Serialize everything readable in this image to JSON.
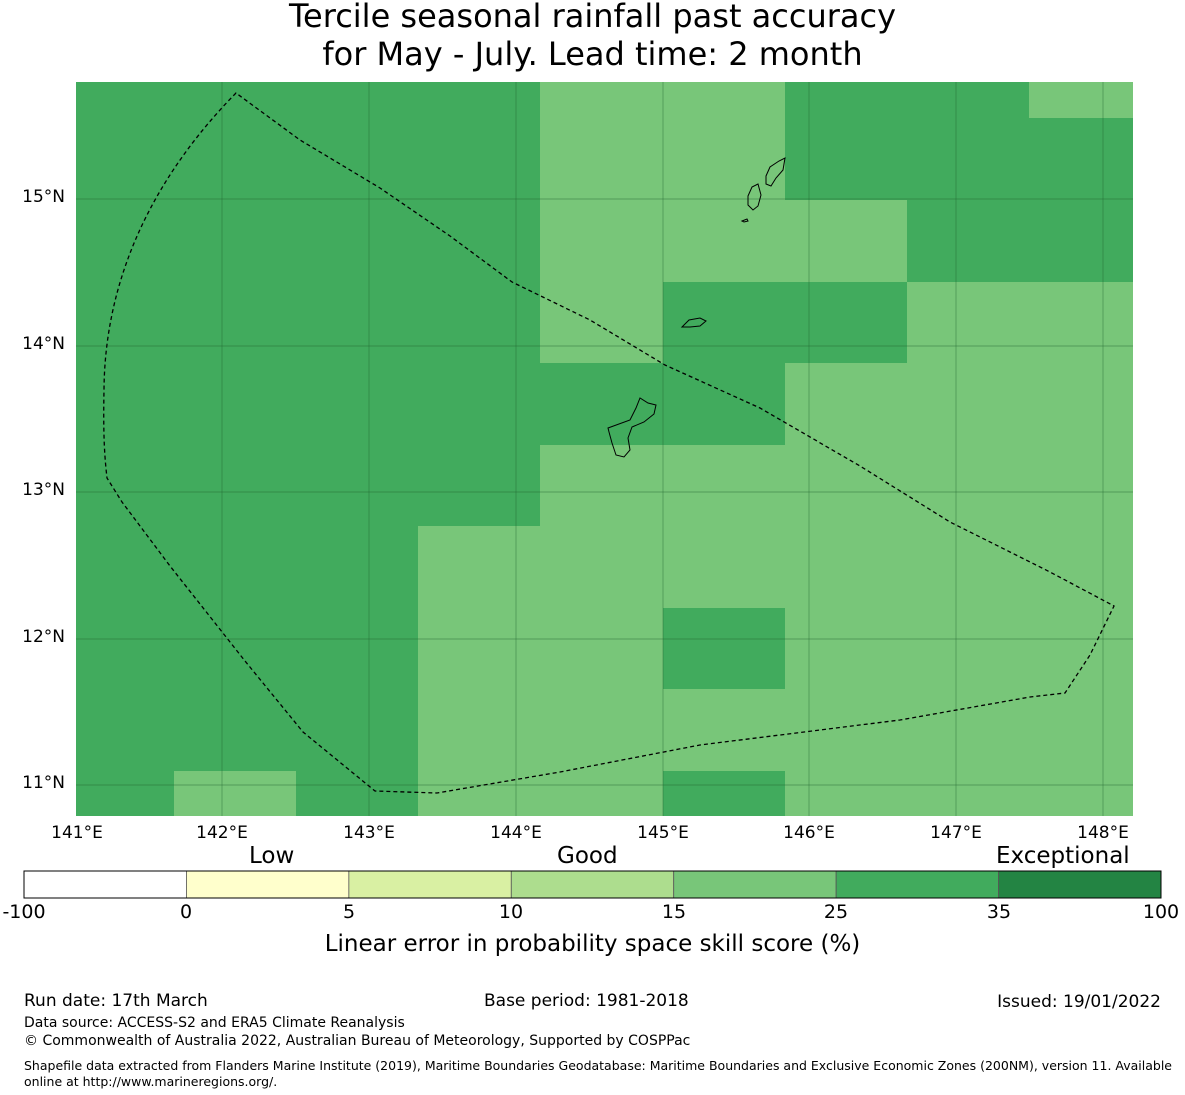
{
  "title": {
    "line1": "Tercile seasonal rainfall past accuracy",
    "line2": "for May - July. Lead time: 2 month"
  },
  "map": {
    "lat_ticks": [
      "15°N",
      "14°N",
      "13°N",
      "12°N",
      "11°N"
    ],
    "lon_ticks": [
      "141°E",
      "142°E",
      "143°E",
      "144°E",
      "145°E",
      "146°E",
      "147°E",
      "148°E"
    ],
    "colors": {
      "good_15_25": "#78c679",
      "high_25_35": "#41ab5d"
    },
    "boundary_style": "dashed"
  },
  "colorbar": {
    "category_labels": [
      "Low",
      "Good",
      "Exceptional"
    ],
    "tick_labels": [
      "-100",
      "0",
      "5",
      "10",
      "15",
      "25",
      "35",
      "100"
    ],
    "colors": [
      "#ffffff",
      "#ffffcc",
      "#d9f0a3",
      "#addd8e",
      "#78c679",
      "#41ab5d",
      "#238443"
    ],
    "axis_label": "Linear error in probability space skill score (%)"
  },
  "footer": {
    "run_date": "Run date: 17th March",
    "base_period": "Base period: 1981-2018",
    "issued": "Issued: 19/01/2022",
    "data_source": "Data source: ACCESS-S2 and ERA5 Climate Reanalysis",
    "copyright": "© Commonwealth of Australia 2022, Australian Bureau of Meteorology, Supported by COSPPac",
    "shapefile": "Shapefile data extracted from Flanders Marine Institute (2019), Maritime Boundaries Geodatabase: Maritime Boundaries and Exclusive Economic Zones (200NM), version 11. Available online at http://www.marineregions.org/."
  }
}
